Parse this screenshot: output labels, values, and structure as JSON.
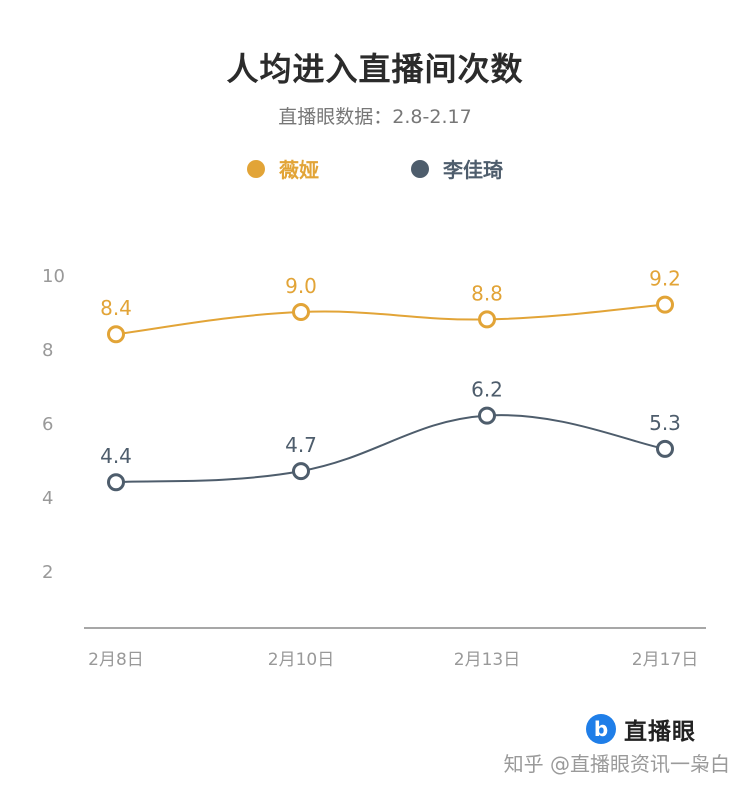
{
  "chart_data": {
    "type": "line",
    "title": "人均进入直播间次数",
    "subtitle": "直播眼数据：2.8-2.17",
    "categories": [
      "2月8日",
      "2月10日",
      "2月13日",
      "2月17日"
    ],
    "series": [
      {
        "name": "薇娅",
        "values": [
          8.4,
          9.0,
          8.8,
          9.2
        ],
        "labels": [
          "8.4",
          "9.0",
          "8.8",
          "9.2"
        ],
        "color": "#e2a437"
      },
      {
        "name": "李佳琦",
        "values": [
          4.4,
          4.7,
          6.2,
          5.3
        ],
        "labels": [
          "4.4",
          "4.7",
          "6.2",
          "5.3"
        ],
        "color": "#4e5d6c"
      }
    ],
    "y_ticks": [
      "2",
      "4",
      "6",
      "8",
      "10"
    ],
    "ylim": [
      0,
      10
    ],
    "grid": false,
    "legend": "top-center"
  },
  "brand": {
    "logo_letter": "b",
    "name": "直播眼"
  },
  "watermark": "知乎 @直播眼资讯一枭白"
}
